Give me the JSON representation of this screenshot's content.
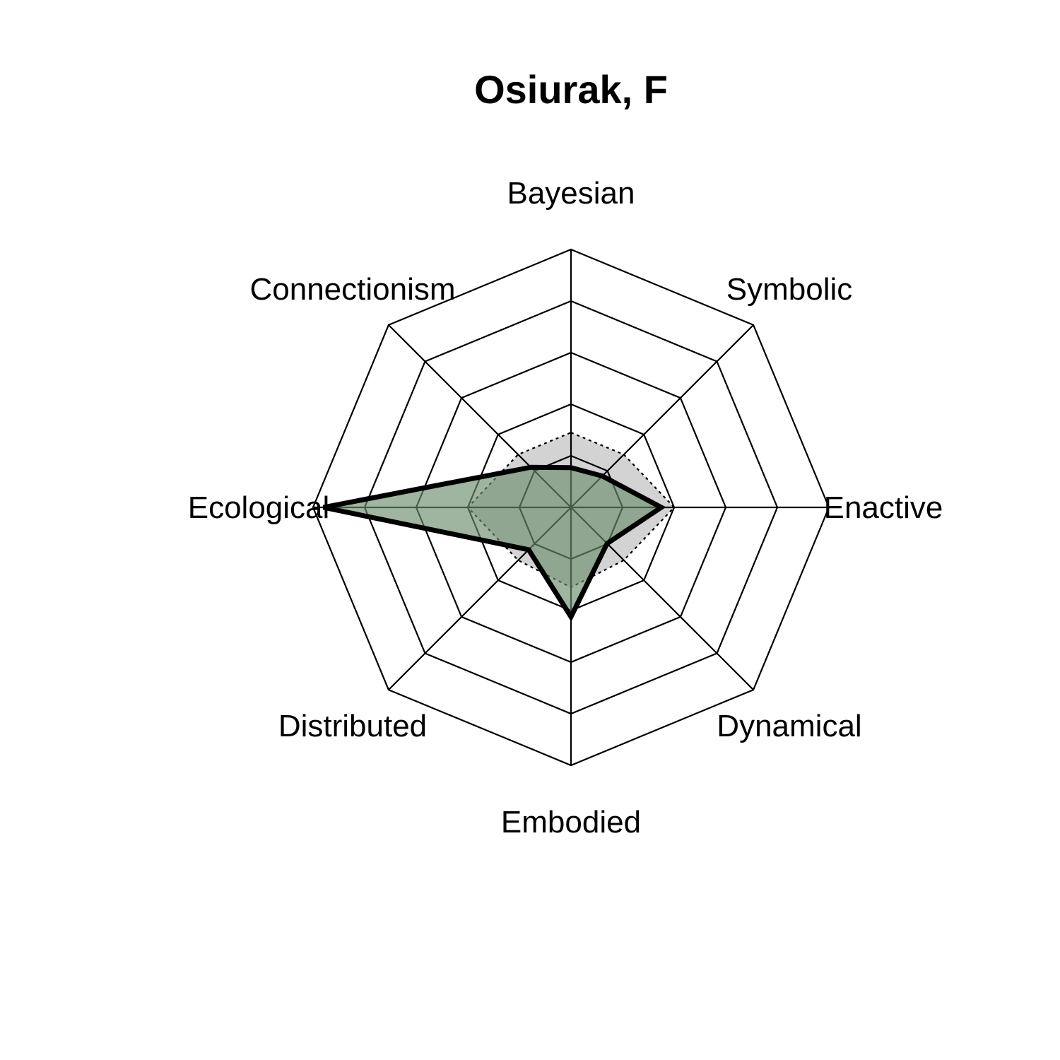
{
  "chart_data": {
    "type": "radar",
    "title": "Osiurak, F",
    "axes": [
      "Bayesian",
      "Symbolic",
      "Enactive",
      "Dynamical",
      "Embodied",
      "Distributed",
      "Ecological",
      "Connectionism"
    ],
    "rmin": -0.5,
    "rmax": 4.5,
    "ring_levels": [
      0.5,
      1.5,
      2.5,
      3.5,
      4.5
    ],
    "series": [
      {
        "values": [
          0.27,
          0.36,
          1.25,
          0.49,
          1.62,
          0.66,
          4.3,
          0.6
        ],
        "fill": "#6b8e6b",
        "fill_opacity": 0.65,
        "stroke": "#000000"
      }
    ],
    "reference": {
      "values": [
        0.95,
        0.95,
        1.5,
        0.95,
        1.05,
        0.95,
        1.5,
        0.95
      ],
      "fill": "#d3d3d3"
    }
  }
}
